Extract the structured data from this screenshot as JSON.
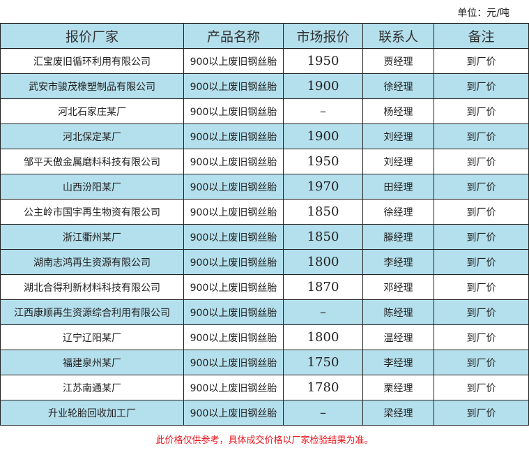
{
  "unit_label": "单位：元/吨",
  "headers": [
    "报价厂家",
    "产品名称",
    "市场报价",
    "联系人",
    "备注"
  ],
  "rows": [
    {
      "company": "汇宝废旧循环利用有限公司",
      "product": "900以上废旧钢丝胎",
      "price": "1950",
      "contact": "贾经理",
      "note": "到厂价",
      "highlight": false
    },
    {
      "company": "武安市骏茂橡塑制品有限公司",
      "product": "900以上废旧钢丝胎",
      "price": "1900",
      "contact": "徐经理",
      "note": "到厂价",
      "highlight": true
    },
    {
      "company": "河北石家庄某厂",
      "product": "900以上废旧钢丝胎",
      "price": "–",
      "contact": "杨经理",
      "note": "到厂价",
      "highlight": false
    },
    {
      "company": "河北保定某厂",
      "product": "900以上废旧钢丝胎",
      "price": "1900",
      "contact": "刘经理",
      "note": "到厂价",
      "highlight": true
    },
    {
      "company": "邹平天傲金属磨料科技有限公司",
      "product": "900以上废旧钢丝胎",
      "price": "1950",
      "contact": "刘经理",
      "note": "到厂价",
      "highlight": false
    },
    {
      "company": "山西汾阳某厂",
      "product": "900以上废旧钢丝胎",
      "price": "1970",
      "contact": "田经理",
      "note": "到厂价",
      "highlight": true
    },
    {
      "company": "公主岭市国宇再生物资有限公司",
      "product": "900以上废旧钢丝胎",
      "price": "1850",
      "contact": "徐经理",
      "note": "到厂价",
      "highlight": false
    },
    {
      "company": "浙江衢州某厂",
      "product": "900以上废旧钢丝胎",
      "price": "1850",
      "contact": "滕经理",
      "note": "到厂价",
      "highlight": true
    },
    {
      "company": "湖南志鸿再生资源有限公司",
      "product": "900以上废旧钢丝胎",
      "price": "1800",
      "contact": "李经理",
      "note": "到厂价",
      "highlight": true
    },
    {
      "company": "湖北合得利新材料科技有限公司",
      "product": "900以上废旧钢丝胎",
      "price": "1870",
      "contact": "邓经理",
      "note": "到厂价",
      "highlight": false
    },
    {
      "company": "江西康顺再生资源综合利用有限公司",
      "product": "900以上废旧钢丝胎",
      "price": "–",
      "contact": "陈经理",
      "note": "到厂价",
      "highlight": true
    },
    {
      "company": "辽宁辽阳某厂",
      "product": "900以上废旧钢丝胎",
      "price": "1800",
      "contact": "温经理",
      "note": "到厂价",
      "highlight": false
    },
    {
      "company": "福建泉州某厂",
      "product": "900以上废旧钢丝胎",
      "price": "1750",
      "contact": "李经理",
      "note": "到厂价",
      "highlight": true
    },
    {
      "company": "江苏南通某厂",
      "product": "900以上废旧钢丝胎",
      "price": "1780",
      "contact": "栗经理",
      "note": "到厂价",
      "highlight": false
    },
    {
      "company": "升业轮胎回收加工厂",
      "product": "900以上废旧钢丝胎",
      "price": "–",
      "contact": "梁经理",
      "note": "到厂价",
      "highlight": true
    }
  ],
  "footer_note": "此价格仅供参考，具体成交价格以厂家检验结果为准。",
  "colors": {
    "highlight": "#b4dfec",
    "note": "#e8141b"
  }
}
